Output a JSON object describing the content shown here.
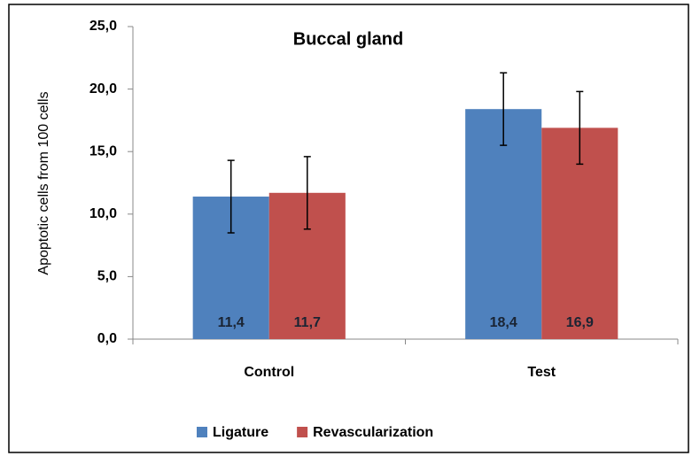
{
  "chart_data": {
    "type": "bar",
    "title": "Buccal gland",
    "ylabel": "Apoptotic cells from 100 cells",
    "categories": [
      "Control",
      "Test"
    ],
    "series": [
      {
        "name": "Ligature",
        "color": "#4f81bd",
        "values": [
          11.4,
          18.4
        ],
        "value_labels": [
          "11,4",
          "18,4"
        ],
        "errors": [
          2.9,
          2.9
        ]
      },
      {
        "name": "Revascularization",
        "color": "#c0504d",
        "values": [
          11.7,
          16.9
        ],
        "value_labels": [
          "11,7",
          "16,9"
        ],
        "errors": [
          2.9,
          2.9
        ]
      }
    ],
    "ylim": [
      0,
      25
    ],
    "yticks": [
      {
        "value": 0,
        "label": "0,0"
      },
      {
        "value": 5,
        "label": "5,0"
      },
      {
        "value": 10,
        "label": "10,0"
      },
      {
        "value": 15,
        "label": "15,0"
      },
      {
        "value": 20,
        "label": "20,0"
      },
      {
        "value": 25,
        "label": "25,0"
      }
    ],
    "legend": "bottom"
  }
}
